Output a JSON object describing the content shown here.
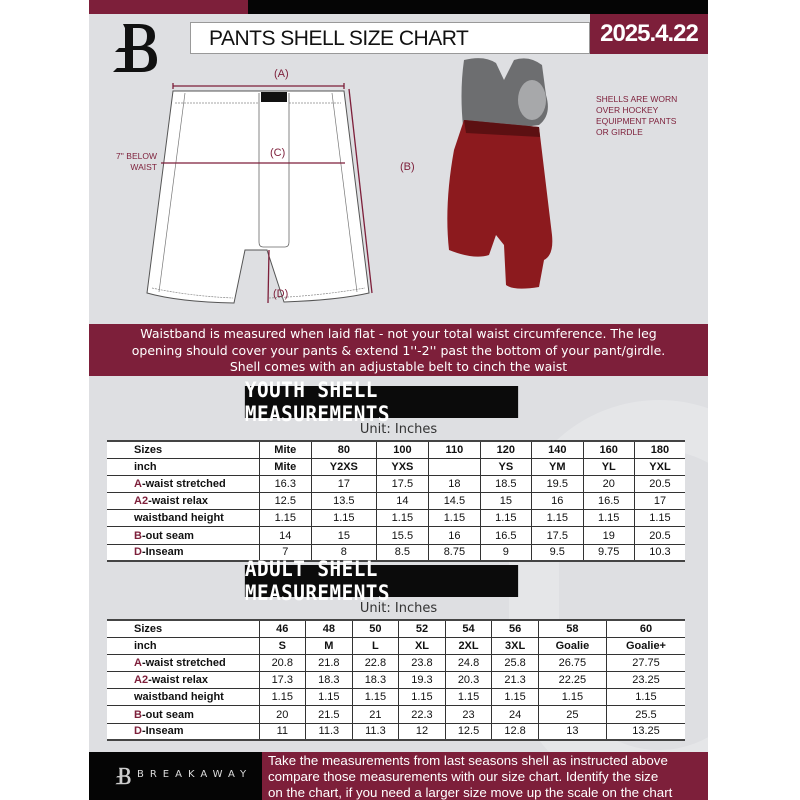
{
  "header": {
    "title": "PANTS SHELL SIZE CHART",
    "date": "2025.4.22",
    "logo_letter": "B"
  },
  "diagram": {
    "label_a": "(A)",
    "label_b": "(B)",
    "label_c": "(C)",
    "label_d": "(D)",
    "below_waist": [
      "7'' BELOW",
      "WAIST"
    ]
  },
  "note": [
    "SHELLS ARE WORN",
    "OVER HOCKEY",
    "EQUIPMENT PANTS",
    "OR GIRDLE"
  ],
  "banner": [
    "Waistband is measured when laid flat - not your total waist circumference. The leg",
    "opening should cover your pants & extend 1''-2'' past the bottom of your pant/girdle.",
    "Shell comes with an adjustable belt to cinch the waist"
  ],
  "youth": {
    "title": "YOUTH SHELL MEASUREMENTS",
    "unit": "Unit: Inches",
    "rows": [
      {
        "k": "",
        "label": "Sizes",
        "v": [
          "Mite",
          "80",
          "100",
          "110",
          "120",
          "140",
          "160",
          "180"
        ]
      },
      {
        "k": "",
        "label": "inch",
        "v": [
          "Mite",
          "Y2XS",
          "YXS",
          "",
          "YS",
          "YM",
          "YL",
          "YXL"
        ]
      },
      {
        "k": "A",
        "label": "-waist stretched",
        "v": [
          "16.3",
          "17",
          "17.5",
          "18",
          "18.5",
          "19.5",
          "20",
          "20.5"
        ]
      },
      {
        "k": "A2",
        "label": "-waist relax",
        "v": [
          "12.5",
          "13.5",
          "14",
          "14.5",
          "15",
          "16",
          "16.5",
          "17"
        ]
      },
      {
        "k": "",
        "label": "waistband height",
        "v": [
          "1.15",
          "1.15",
          "1.15",
          "1.15",
          "1.15",
          "1.15",
          "1.15",
          "1.15"
        ]
      },
      {
        "k": "B",
        "label": "-out seam",
        "v": [
          "14",
          "15",
          "15.5",
          "16",
          "16.5",
          "17.5",
          "19",
          "20.5"
        ]
      },
      {
        "k": "D",
        "label": "-Inseam",
        "v": [
          "7",
          "8",
          "8.5",
          "8.75",
          "9",
          "9.5",
          "9.75",
          "10.3"
        ]
      }
    ]
  },
  "adult": {
    "title": "ADULT SHELL MEASUREMENTS",
    "unit": "Unit: Inches",
    "rows": [
      {
        "k": "",
        "label": "Sizes",
        "v": [
          "46",
          "48",
          "50",
          "52",
          "54",
          "56",
          "58",
          "60"
        ]
      },
      {
        "k": "",
        "label": "inch",
        "v": [
          "S",
          "M",
          "L",
          "XL",
          "2XL",
          "3XL",
          "Goalie",
          "Goalie+"
        ]
      },
      {
        "k": "A",
        "label": "-waist stretched",
        "v": [
          "20.8",
          "21.8",
          "22.8",
          "23.8",
          "24.8",
          "25.8",
          "26.75",
          "27.75"
        ]
      },
      {
        "k": "A2",
        "label": "-waist relax",
        "v": [
          "17.3",
          "18.3",
          "18.3",
          "19.3",
          "20.3",
          "21.3",
          "22.25",
          "23.25"
        ]
      },
      {
        "k": "",
        "label": "waistband height",
        "v": [
          "1.15",
          "1.15",
          "1.15",
          "1.15",
          "1.15",
          "1.15",
          "1.15",
          "1.15"
        ]
      },
      {
        "k": "B",
        "label": "-out seam",
        "v": [
          "20",
          "21.5",
          "21",
          "22.3",
          "23",
          "24",
          "25",
          "25.5"
        ]
      },
      {
        "k": "D",
        "label": "-Inseam",
        "v": [
          "11",
          "11.3",
          "11.3",
          "12",
          "12.5",
          "12.8",
          "13",
          "13.25"
        ]
      }
    ]
  },
  "footer": {
    "brand": "BREAKAWAY",
    "text": [
      "Take the measurements from last seasons shell as instructed above",
      "compare those measurements  with our size chart. Identify the size",
      "on the chart, if you need a larger size move up the scale on the chart"
    ]
  },
  "colors": {
    "accent": "#7d1f3a",
    "dark": "#050505",
    "background": "#dedfe2"
  }
}
